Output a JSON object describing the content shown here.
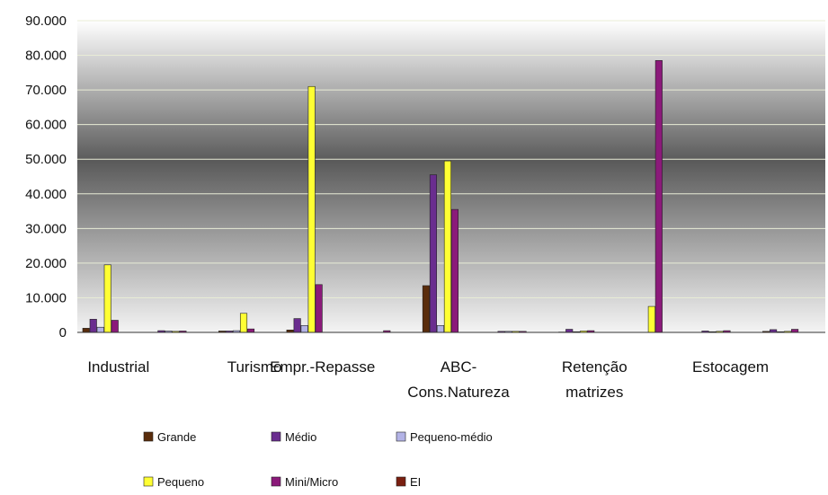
{
  "chart_data": {
    "type": "bar",
    "title": "",
    "xlabel": "",
    "ylabel": "",
    "ylim": [
      0,
      90000
    ],
    "y_ticks": [
      "0",
      "10.000",
      "20.000",
      "30.000",
      "40.000",
      "50.000",
      "60.000",
      "70.000",
      "80.000",
      "90.000"
    ],
    "grid": true,
    "legend_position": "bottom",
    "categories": [
      "Industrial",
      "",
      "Turismo",
      "Empr.-Repasse",
      "",
      "ABC- Cons.Natureza",
      "",
      "Retenção matrizes",
      "",
      "Estocagem",
      ""
    ],
    "category_label_lines": [
      [
        "Industrial"
      ],
      [
        ""
      ],
      [
        "Turismo"
      ],
      [
        "Empr.-Repasse"
      ],
      [
        ""
      ],
      [
        "ABC-",
        "Cons.Natureza"
      ],
      [
        ""
      ],
      [
        "Retenção",
        "matrizes"
      ],
      [
        ""
      ],
      [
        "Estocagem"
      ],
      [
        ""
      ]
    ],
    "series": [
      {
        "name": "Grande",
        "color": "#5a2d0c",
        "values": [
          1200,
          0,
          400,
          700,
          0,
          13500,
          0,
          100,
          0,
          0,
          300
        ]
      },
      {
        "name": "Médio",
        "color": "#6a2d8f",
        "values": [
          3800,
          500,
          400,
          4000,
          0,
          45500,
          300,
          900,
          0,
          400,
          800
        ]
      },
      {
        "name": "Pequeno-médio",
        "color": "#b3b3e6",
        "values": [
          1500,
          400,
          500,
          2000,
          0,
          2000,
          300,
          200,
          0,
          200,
          200
        ]
      },
      {
        "name": "Pequeno",
        "color": "#ffff33",
        "values": [
          19500,
          300,
          5500,
          71000,
          0,
          49500,
          300,
          400,
          7500,
          300,
          300
        ]
      },
      {
        "name": "Mini/Micro",
        "color": "#8b1a7a",
        "values": [
          3500,
          400,
          1000,
          13800,
          500,
          35500,
          300,
          500,
          78500,
          500,
          900
        ]
      },
      {
        "name": "EI",
        "color": "#7a1f10",
        "values": [
          0,
          0,
          0,
          0,
          0,
          0,
          0,
          0,
          0,
          0,
          0
        ]
      }
    ]
  }
}
